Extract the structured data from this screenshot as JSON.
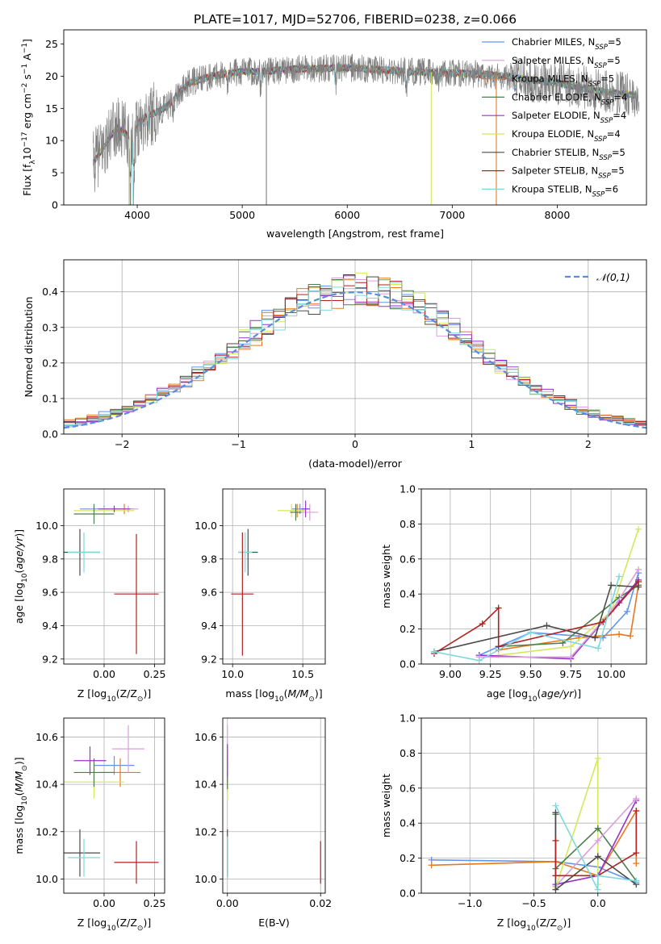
{
  "figure": {
    "title": "PLATE=1017, MJD=52706, FIBERID=0238, z=0.066"
  },
  "chart_data": [
    {
      "id": "spectrum",
      "type": "line",
      "xlabel": "wavelength [Angstrom, rest frame]",
      "ylabel_parts": [
        "Flux [f",
        "λ",
        "10",
        "−17",
        " erg cm",
        "−2",
        " s",
        "−1",
        " A",
        "−1",
        "]"
      ],
      "xlim": [
        3300,
        8850
      ],
      "ylim": [
        0,
        27.2
      ],
      "xticks": [
        4000,
        5000,
        6000,
        7000,
        8000
      ],
      "yticks": [
        0,
        5,
        10,
        15,
        20,
        25
      ],
      "grid": false,
      "legend_position": "right",
      "series": [
        {
          "name": "Chabrier MILES, N",
          "sub": "SSP",
          "suffix": "=5",
          "color": "#6495ed"
        },
        {
          "name": "Salpeter MILES, N",
          "sub": "SSP",
          "suffix": "=5",
          "color": "#d9a0d9"
        },
        {
          "name": "Kroupa MILES, N",
          "sub": "SSP",
          "suffix": "=5",
          "color": "#e8781e"
        },
        {
          "name": "Chabrier ELODIE, N",
          "sub": "SSP",
          "suffix": "=4",
          "color": "#4e7d4e"
        },
        {
          "name": "Salpeter ELODIE, N",
          "sub": "SSP",
          "suffix": "=4",
          "color": "#9932cc"
        },
        {
          "name": "Kroupa ELODIE, N",
          "sub": "SSP",
          "suffix": "=4",
          "color": "#d4e85a"
        },
        {
          "name": "Chabrier STELIB, N",
          "sub": "SSP",
          "suffix": "=5",
          "color": "#4a4a4a"
        },
        {
          "name": "Salpeter STELIB, N",
          "sub": "SSP",
          "suffix": "=5",
          "color": "#b22222"
        },
        {
          "name": "Kroupa STELIB, N",
          "sub": "SSP",
          "suffix": "=6",
          "color": "#7fd8dc"
        }
      ],
      "data_color": "#808080",
      "continuum": [
        [
          3580,
          6.5
        ],
        [
          3700,
          9.5
        ],
        [
          3800,
          12
        ],
        [
          3900,
          11
        ],
        [
          3950,
          9
        ],
        [
          4000,
          12.5
        ],
        [
          4100,
          14
        ],
        [
          4200,
          14.5
        ],
        [
          4300,
          15.5
        ],
        [
          4400,
          17.5
        ],
        [
          4500,
          19
        ],
        [
          4700,
          20
        ],
        [
          4900,
          20.5
        ],
        [
          5000,
          20.8
        ],
        [
          5200,
          20.7
        ],
        [
          5400,
          21
        ],
        [
          5700,
          21.2
        ],
        [
          6000,
          21.3
        ],
        [
          6300,
          21
        ],
        [
          6600,
          20.7
        ],
        [
          7000,
          20.5
        ],
        [
          7300,
          20.3
        ],
        [
          7500,
          20
        ],
        [
          7700,
          19.5
        ],
        [
          8000,
          19
        ],
        [
          8300,
          18
        ],
        [
          8500,
          17.5
        ],
        [
          8750,
          17
        ]
      ]
    },
    {
      "id": "residuals",
      "type": "line",
      "xlabel": "(data-model)/error",
      "ylabel": "Normed distribution",
      "xlim": [
        -2.5,
        2.5
      ],
      "ylim": [
        0,
        0.49
      ],
      "xticks": [
        -2,
        -1,
        0,
        1,
        2
      ],
      "yticks": [
        0.0,
        0.1,
        0.2,
        0.3,
        0.4
      ],
      "grid": true,
      "legend_position": "top-right",
      "legend": {
        "label": "𝒩(0,1)",
        "color": "#5b8dd6"
      }
    },
    {
      "id": "age-vs-Z",
      "type": "scatter",
      "xlabel": "Z [log10(Z/Z⊙)]",
      "ylabel": "age  [log10(age/yr)]",
      "xlim": [
        -0.2,
        0.3
      ],
      "ylim": [
        9.17,
        10.22
      ],
      "xticks": [
        -0.0,
        0.25
      ],
      "xticklabels": [
        "0.00",
        "0.25"
      ],
      "yticks": [
        9.2,
        9.4,
        9.6,
        9.8,
        10.0
      ],
      "grid": true,
      "points": [
        {
          "x": 0.0,
          "y": 10.1,
          "ex": 0.12,
          "ey": 0.02,
          "c": "#6495ed"
        },
        {
          "x": 0.1,
          "y": 10.1,
          "ex": 0.05,
          "ey": 0.03,
          "c": "#e8781e"
        },
        {
          "x": 0.0,
          "y": 10.09,
          "ex": 0.15,
          "ey": 0.02,
          "c": "#d4e85a"
        },
        {
          "x": -0.05,
          "y": 10.07,
          "ex": 0.1,
          "ey": 0.06,
          "c": "#4e7d4e"
        },
        {
          "x": 0.12,
          "y": 10.1,
          "ex": 0.05,
          "ey": 0.02,
          "c": "#d9a0d9"
        },
        {
          "x": 0.05,
          "y": 10.1,
          "ex": 0.08,
          "ey": 0.02,
          "c": "#9932cc"
        },
        {
          "x": -0.12,
          "y": 9.84,
          "ex": 0.1,
          "ey": 0.14,
          "c": "#4a4a4a"
        },
        {
          "x": -0.1,
          "y": 9.84,
          "ex": 0.08,
          "ey": 0.12,
          "c": "#7fd8dc"
        },
        {
          "x": 0.16,
          "y": 9.59,
          "ex": 0.11,
          "ey": 0.36,
          "c": "#b22222"
        }
      ]
    },
    {
      "id": "age-vs-mass",
      "type": "scatter",
      "xlabel": "mass [log10(M/M⊙)]",
      "ylabel": "",
      "xlim": [
        9.93,
        10.66
      ],
      "ylim": [
        9.17,
        10.22
      ],
      "xticks": [
        10.0,
        10.5
      ],
      "xticklabels": [
        "10.0",
        "10.5"
      ],
      "yticks": [
        9.2,
        9.4,
        9.6,
        9.8,
        10.0
      ],
      "grid": true,
      "points": [
        {
          "x": 10.48,
          "y": 10.1,
          "ex": 0.06,
          "ey": 0.03,
          "c": "#6495ed"
        },
        {
          "x": 10.46,
          "y": 10.09,
          "ex": 0.05,
          "ey": 0.04,
          "c": "#e8781e"
        },
        {
          "x": 10.42,
          "y": 10.09,
          "ex": 0.1,
          "ey": 0.04,
          "c": "#d4e85a"
        },
        {
          "x": 10.45,
          "y": 10.08,
          "ex": 0.04,
          "ey": 0.05,
          "c": "#4e7d4e"
        },
        {
          "x": 10.55,
          "y": 10.08,
          "ex": 0.06,
          "ey": 0.05,
          "c": "#d9a0d9"
        },
        {
          "x": 10.52,
          "y": 10.1,
          "ex": 0.03,
          "ey": 0.05,
          "c": "#9932cc"
        },
        {
          "x": 10.11,
          "y": 9.84,
          "ex": 0.07,
          "ey": 0.14,
          "c": "#4a4a4a"
        },
        {
          "x": 10.09,
          "y": 9.84,
          "ex": 0.05,
          "ey": 0.12,
          "c": "#7fd8dc"
        },
        {
          "x": 10.07,
          "y": 9.59,
          "ex": 0.08,
          "ey": 0.37,
          "c": "#b22222"
        }
      ]
    },
    {
      "id": "weight-vs-age",
      "type": "line",
      "xlabel": "age  [log10(age/yr)]",
      "ylabel": "mass weight",
      "xlim": [
        8.82,
        10.22
      ],
      "ylim": [
        0,
        1.0
      ],
      "xticks": [
        9.0,
        9.25,
        9.5,
        9.75,
        10.0
      ],
      "xticklabels": [
        "9.00",
        "9.25",
        "9.50",
        "9.75",
        "10.00"
      ],
      "yticks": [
        0.0,
        0.2,
        0.4,
        0.6,
        0.8,
        1.0
      ],
      "grid": true,
      "series": [
        {
          "c": "#6495ed",
          "x": [
            9.18,
            9.5,
            9.95,
            10.1,
            10.17
          ],
          "y": [
            0.05,
            0.18,
            0.15,
            0.3,
            0.52
          ]
        },
        {
          "c": "#e8781e",
          "x": [
            9.3,
            9.8,
            10.05,
            10.12,
            10.17
          ],
          "y": [
            0.08,
            0.15,
            0.17,
            0.16,
            0.45
          ]
        },
        {
          "c": "#d4e85a",
          "x": [
            9.3,
            9.75,
            10.0,
            10.17
          ],
          "y": [
            0.05,
            0.1,
            0.3,
            0.77
          ]
        },
        {
          "c": "#4e7d4e",
          "x": [
            9.3,
            9.7,
            10.05,
            10.17
          ],
          "y": [
            0.1,
            0.12,
            0.38,
            0.45
          ]
        },
        {
          "c": "#9932cc",
          "x": [
            9.18,
            9.75,
            10.05,
            10.17
          ],
          "y": [
            0.05,
            0.03,
            0.35,
            0.48
          ]
        },
        {
          "c": "#d9a0d9",
          "x": [
            9.18,
            9.75,
            10.0,
            10.17
          ],
          "y": [
            0.04,
            0.04,
            0.3,
            0.54
          ]
        },
        {
          "c": "#4a4a4a",
          "x": [
            8.9,
            9.6,
            9.9,
            10.0,
            10.17
          ],
          "y": [
            0.07,
            0.22,
            0.15,
            0.45,
            0.44
          ]
        },
        {
          "c": "#b22222",
          "x": [
            8.9,
            9.2,
            9.3,
            9.3,
            9.95,
            10.17
          ],
          "y": [
            0.06,
            0.23,
            0.32,
            0.1,
            0.24,
            0.47
          ]
        },
        {
          "c": "#7fd8dc",
          "x": [
            8.9,
            9.18,
            9.5,
            9.92,
            10.05
          ],
          "y": [
            0.07,
            0.02,
            0.18,
            0.09,
            0.5
          ]
        }
      ]
    },
    {
      "id": "mass-vs-Z",
      "type": "scatter",
      "xlabel": "Z [log10(Z/Z⊙)]",
      "ylabel": "mass [log10(M/M⊙)]",
      "xlim": [
        -0.2,
        0.3
      ],
      "ylim": [
        9.94,
        10.68
      ],
      "xticks": [
        0.0,
        0.25
      ],
      "xticklabels": [
        "0.00",
        "0.25"
      ],
      "yticks": [
        10.0,
        10.2,
        10.4,
        10.6
      ],
      "grid": true,
      "points": [
        {
          "x": 0.05,
          "y": 10.48,
          "ex": 0.1,
          "ey": 0.04,
          "c": "#6495ed"
        },
        {
          "x": 0.08,
          "y": 10.45,
          "ex": 0.1,
          "ey": 0.06,
          "c": "#e8781e"
        },
        {
          "x": -0.05,
          "y": 10.41,
          "ex": 0.15,
          "ey": 0.07,
          "c": "#d4e85a"
        },
        {
          "x": -0.05,
          "y": 10.45,
          "ex": 0.1,
          "ey": 0.06,
          "c": "#4e7d4e"
        },
        {
          "x": 0.12,
          "y": 10.55,
          "ex": 0.08,
          "ey": 0.1,
          "c": "#d9a0d9"
        },
        {
          "x": -0.07,
          "y": 10.5,
          "ex": 0.08,
          "ey": 0.06,
          "c": "#9932cc"
        },
        {
          "x": -0.12,
          "y": 10.11,
          "ex": 0.1,
          "ey": 0.1,
          "c": "#4a4a4a"
        },
        {
          "x": -0.1,
          "y": 10.09,
          "ex": 0.08,
          "ey": 0.08,
          "c": "#7fd8dc"
        },
        {
          "x": 0.16,
          "y": 10.07,
          "ex": 0.11,
          "ey": 0.09,
          "c": "#b22222"
        }
      ]
    },
    {
      "id": "mass-vs-EBV",
      "type": "scatter",
      "xlabel": "E(B-V)",
      "ylabel": "",
      "xlim": [
        -0.001,
        0.021
      ],
      "ylim": [
        9.94,
        10.68
      ],
      "xticks": [
        0.0,
        0.02
      ],
      "xticklabels": [
        "0.00",
        "0.02"
      ],
      "yticks": [
        10.0,
        10.2,
        10.4,
        10.6
      ],
      "grid": true,
      "points": [
        {
          "x": 0.0,
          "y": 10.48,
          "ey": 0.05,
          "c": "#6495ed"
        },
        {
          "x": 0.0,
          "y": 10.45,
          "ey": 0.08,
          "c": "#e8781e"
        },
        {
          "x": 0.0,
          "y": 10.41,
          "ey": 0.08,
          "c": "#d4e85a"
        },
        {
          "x": 0.0,
          "y": 10.45,
          "ey": 0.07,
          "c": "#4e7d4e"
        },
        {
          "x": 0.0,
          "y": 10.55,
          "ey": 0.1,
          "c": "#d9a0d9"
        },
        {
          "x": 0.0,
          "y": 10.5,
          "ey": 0.07,
          "c": "#9932cc"
        },
        {
          "x": 0.0,
          "y": 10.11,
          "ey": 0.1,
          "c": "#4a4a4a"
        },
        {
          "x": 0.0,
          "y": 10.09,
          "ey": 0.09,
          "c": "#7fd8dc"
        },
        {
          "x": 0.02,
          "y": 10.07,
          "ey": 0.09,
          "c": "#b22222"
        }
      ]
    },
    {
      "id": "weight-vs-Z",
      "type": "line",
      "xlabel": "Z [log10(Z/Z⊙)]",
      "ylabel": "mass weight",
      "xlim": [
        -1.38,
        0.38
      ],
      "ylim": [
        0,
        1.0
      ],
      "xticks": [
        -1.0,
        -0.5,
        0.0
      ],
      "xticklabels": [
        "−1.0",
        "−0.5",
        "0.0"
      ],
      "yticks": [
        0.0,
        0.2,
        0.4,
        0.6,
        0.8,
        1.0
      ],
      "grid": true,
      "series": [
        {
          "c": "#6495ed",
          "x": [
            -1.3,
            -0.33,
            0.0,
            0.3
          ],
          "y": [
            0.19,
            0.18,
            0.15,
            0.06
          ]
        },
        {
          "c": "#e8781e",
          "x": [
            -1.3,
            -0.33,
            0.0,
            0.3,
            0.3
          ],
          "y": [
            0.16,
            0.18,
            0.1,
            0.47,
            0.17
          ]
        },
        {
          "c": "#d4e85a",
          "x": [
            -0.33,
            0.0,
            0.0
          ],
          "y": [
            0.03,
            0.77,
            0.05
          ]
        },
        {
          "c": "#4e7d4e",
          "x": [
            -0.33,
            -0.33,
            0.0,
            0.3
          ],
          "y": [
            0.45,
            0.14,
            0.37,
            0.07
          ]
        },
        {
          "c": "#9932cc",
          "x": [
            -0.33,
            0.0,
            0.3
          ],
          "y": [
            0.05,
            0.1,
            0.53
          ]
        },
        {
          "c": "#d9a0d9",
          "x": [
            -0.33,
            0.0,
            0.3
          ],
          "y": [
            0.04,
            0.3,
            0.54
          ]
        },
        {
          "c": "#4a4a4a",
          "x": [
            -0.33,
            -0.33,
            0.0,
            0.3
          ],
          "y": [
            0.46,
            0.02,
            0.21,
            0.05
          ]
        },
        {
          "c": "#b22222",
          "x": [
            -0.33,
            -0.33,
            0.0,
            0.3,
            0.3
          ],
          "y": [
            0.3,
            0.1,
            0.1,
            0.23,
            0.47
          ]
        },
        {
          "c": "#7fd8dc",
          "x": [
            -0.33,
            0.0,
            0.0,
            0.3
          ],
          "y": [
            0.5,
            0.02,
            0.1,
            0.07
          ]
        }
      ]
    }
  ]
}
